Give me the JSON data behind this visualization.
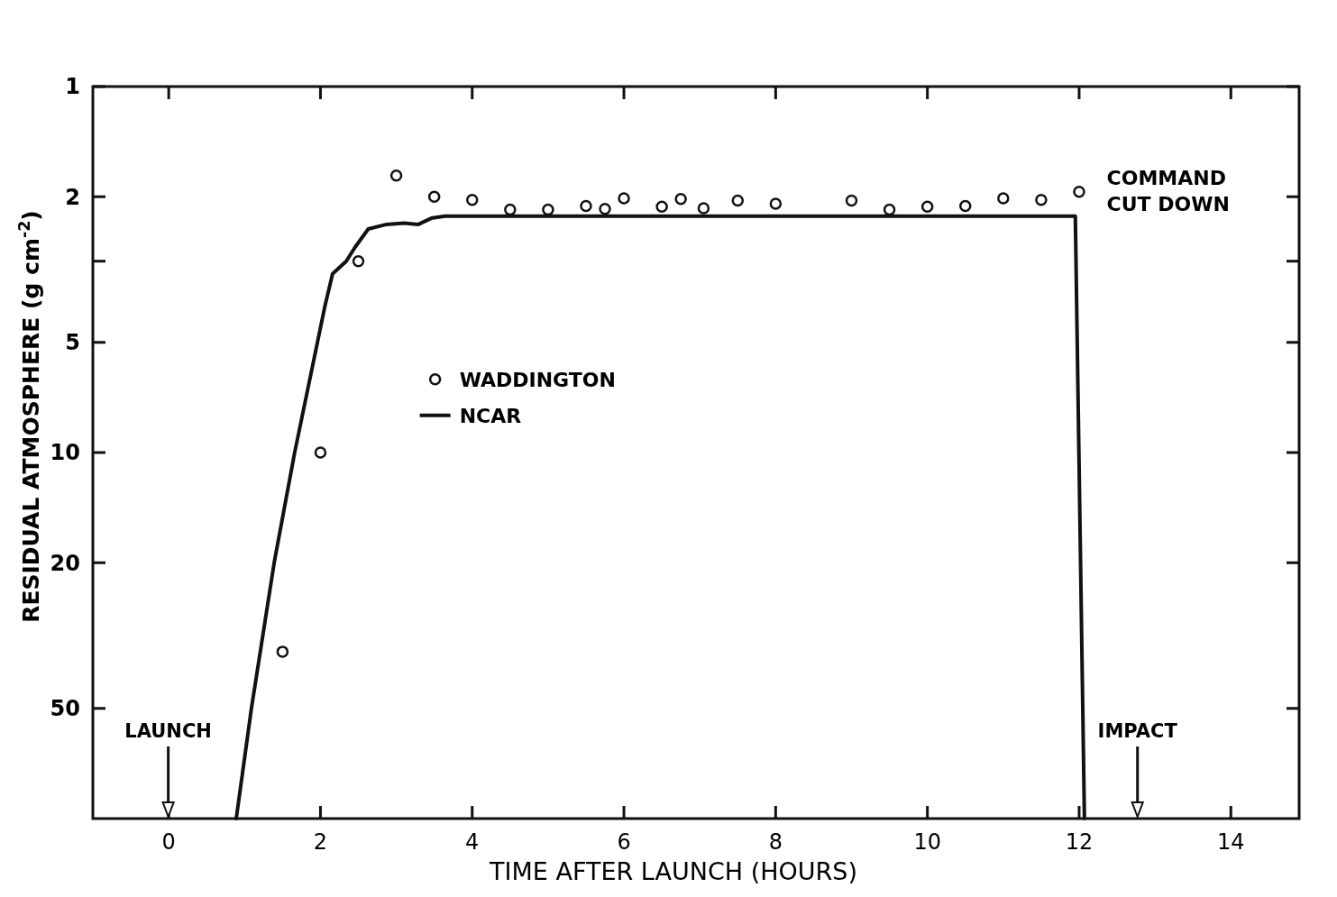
{
  "chart_data": {
    "type": "scatter",
    "xlabel": "TIME AFTER LAUNCH (HOURS)",
    "ylabel": "RESIDUAL ATMOSPHERE (g cm$^{-2}$)",
    "xlim": [
      -1,
      14.9
    ],
    "xticks": [
      0,
      2,
      4,
      6,
      8,
      10,
      12,
      14
    ],
    "ylim": [
      100,
      1
    ],
    "yticks": [
      1,
      2,
      {
        "value": 3,
        "label": null
      },
      5,
      10,
      20,
      50
    ],
    "log": "y",
    "grid": false,
    "legend": "left",
    "series": [
      {
        "name": "WADDINGTON",
        "marker": "circle",
        "color": "#111111",
        "x": [
          1.5,
          2,
          2.5,
          3,
          3.5,
          4,
          4.5,
          5,
          5.5,
          5.75,
          6,
          6.5,
          6.75,
          7.05,
          7.5,
          8,
          9,
          9.5,
          10,
          10.5,
          11,
          11.5,
          12
        ],
        "values": [
          35,
          10,
          3,
          1.75,
          2,
          2.04,
          2.17,
          2.17,
          2.12,
          2.16,
          2.02,
          2.13,
          2.03,
          2.15,
          2.05,
          2.09,
          2.05,
          2.17,
          2.13,
          2.12,
          2.02,
          2.04,
          1.94
        ]
      },
      {
        "name": "NCAR",
        "type": "line",
        "marker": "none",
        "color": "#111111",
        "x": [
          0.89,
          1.09,
          1.39,
          1.66,
          1.96,
          2.06,
          2.16,
          2.34,
          2.46,
          2.63,
          2.87,
          3.1,
          3.29,
          3.46,
          3.64,
          11.95,
          12.07
        ],
        "values": [
          100,
          50,
          20,
          10,
          5,
          3.97,
          3.25,
          3,
          2.74,
          2.45,
          2.38,
          2.36,
          2.38,
          2.29,
          2.26,
          2.26,
          100
        ]
      }
    ],
    "annotations": [
      "LAUNCH",
      "IMPACT",
      "COMMAND CUT DOWN"
    ]
  }
}
